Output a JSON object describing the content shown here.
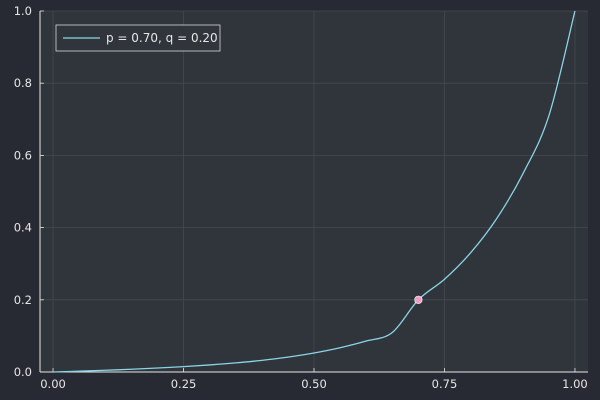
{
  "chart_data": {
    "type": "line",
    "title": "",
    "xlabel": "",
    "ylabel": "",
    "xlim": [
      -0.025,
      1.025
    ],
    "ylim": [
      0,
      1
    ],
    "xticks": [
      0.0,
      0.25,
      0.5,
      0.75,
      1.0
    ],
    "xtick_labels": [
      "0.00",
      "0.25",
      "0.50",
      "0.75",
      "1.00"
    ],
    "yticks": [
      0.0,
      0.2,
      0.4,
      0.6,
      0.8,
      1.0
    ],
    "ytick_labels": [
      "0.0",
      "0.2",
      "0.4",
      "0.6",
      "0.8",
      "1.0"
    ],
    "grid": true,
    "legend_position": "top-left",
    "series": [
      {
        "name": "p = 0.70, q = 0.20",
        "color": "#8ad5e6",
        "x": [
          0.0,
          0.05,
          0.1,
          0.15,
          0.2,
          0.25,
          0.3,
          0.35,
          0.4,
          0.45,
          0.5,
          0.55,
          0.6,
          0.65,
          0.7,
          0.75,
          0.8,
          0.85,
          0.9,
          0.95,
          1.0
        ],
        "y": [
          0.0,
          0.0023,
          0.0048,
          0.0077,
          0.011,
          0.0149,
          0.0195,
          0.0252,
          0.0323,
          0.0413,
          0.0527,
          0.0672,
          0.0857,
          0.1095,
          0.2,
          0.2569,
          0.3301,
          0.4249,
          0.5484,
          0.7097,
          1.0
        ]
      }
    ],
    "markers": [
      {
        "x": 0.7,
        "y": 0.2,
        "color": "#f19ec4"
      }
    ]
  },
  "colors": {
    "background": "#272a33",
    "plot_area": "#30343b",
    "grid": "#444a52",
    "axis": "#e6e6e6"
  }
}
